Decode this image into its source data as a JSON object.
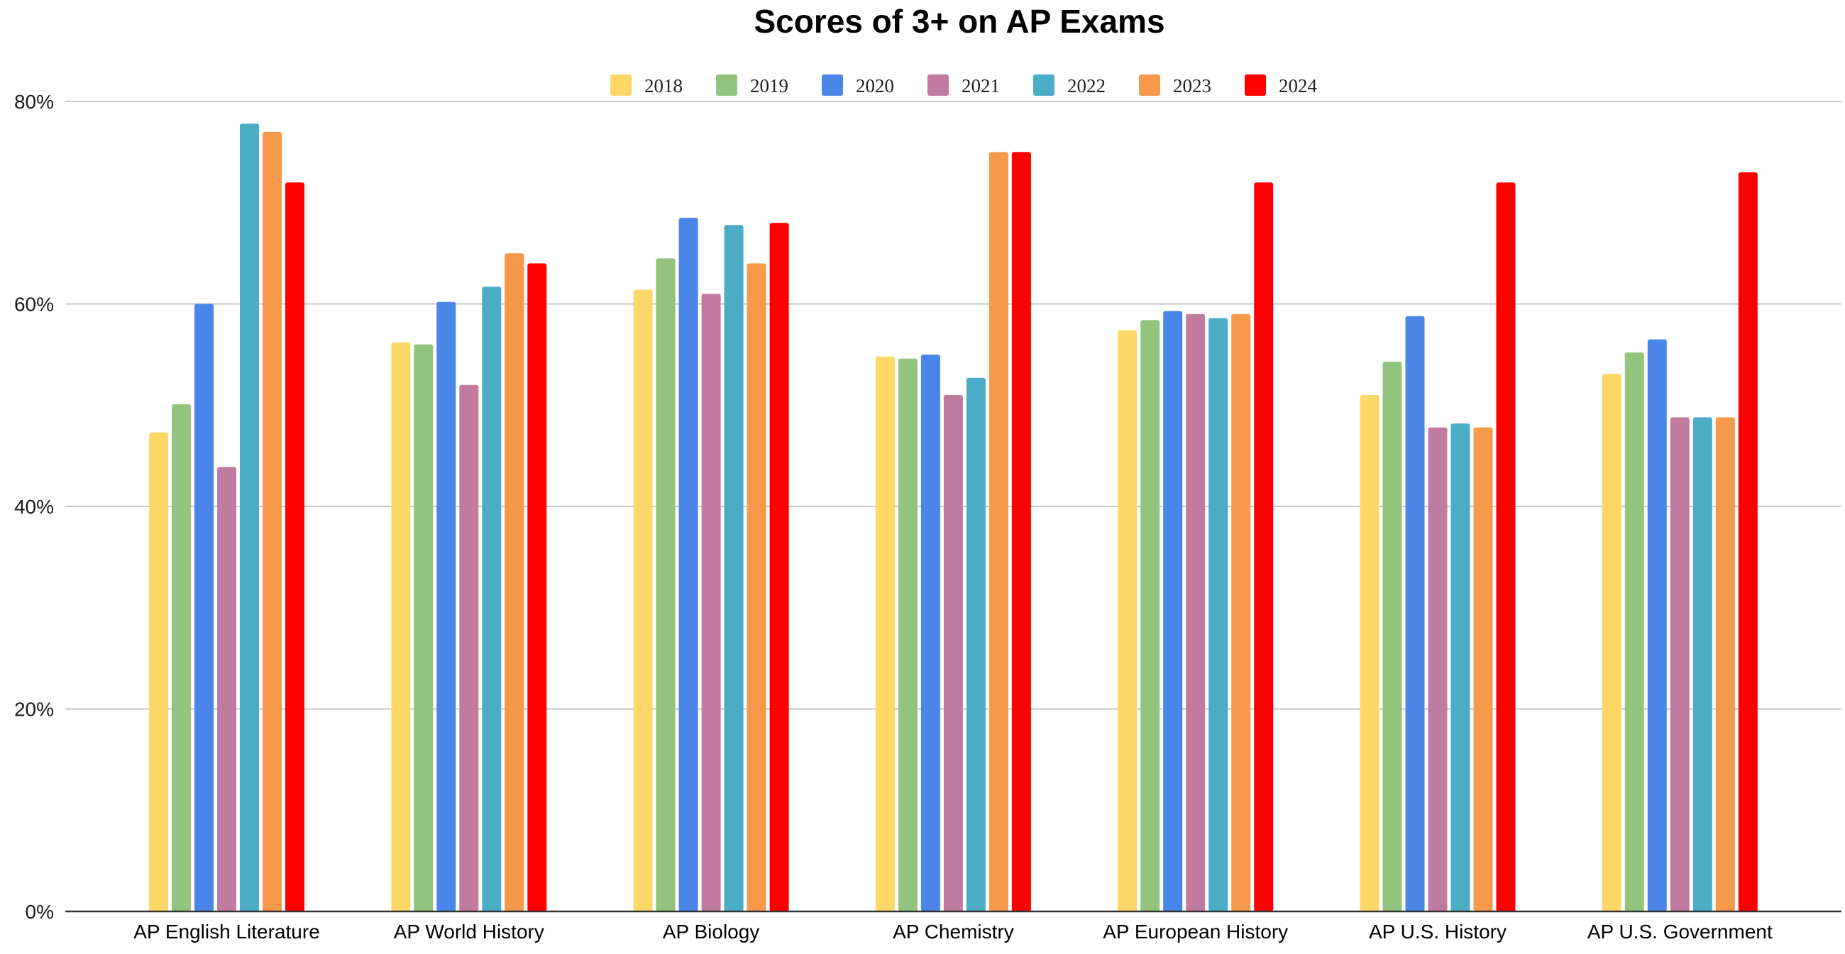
{
  "chart_data": {
    "type": "bar",
    "title": "Scores of 3+ on AP Exams",
    "xlabel": "",
    "ylabel": "",
    "ylim": [
      0,
      80
    ],
    "y_ticks": [
      "0%",
      "20%",
      "40%",
      "60%",
      "80%"
    ],
    "y_tick_values": [
      0,
      20,
      40,
      60,
      80
    ],
    "grid": true,
    "legend_position": "top",
    "categories": [
      "AP English Literature",
      "AP World History",
      "AP Biology",
      "AP Chemistry",
      "AP European History",
      "AP U.S. History",
      "AP U.S. Government"
    ],
    "series": [
      {
        "name": "2018",
        "color": "#FDD868",
        "values": [
          47.3,
          56.2,
          61.4,
          54.8,
          57.4,
          51.0,
          53.1
        ]
      },
      {
        "name": "2019",
        "color": "#93C47D",
        "values": [
          50.1,
          56.0,
          64.5,
          54.6,
          58.4,
          54.3,
          55.2
        ]
      },
      {
        "name": "2020",
        "color": "#4A86E8",
        "values": [
          60.0,
          60.2,
          68.5,
          55.0,
          59.3,
          58.8,
          56.5
        ]
      },
      {
        "name": "2021",
        "color": "#C27BA0",
        "values": [
          43.9,
          52.0,
          61.0,
          51.0,
          59.0,
          47.8,
          48.8
        ]
      },
      {
        "name": "2022",
        "color": "#4BACC6",
        "values": [
          77.8,
          61.7,
          67.8,
          52.7,
          58.6,
          48.2,
          48.8
        ]
      },
      {
        "name": "2023",
        "color": "#F6994A",
        "values": [
          77.0,
          65.0,
          64.0,
          75.0,
          59.0,
          47.8,
          48.8
        ]
      },
      {
        "name": "2024",
        "color": "#FF0000",
        "values": [
          72.0,
          64.0,
          68.0,
          75.0,
          72.0,
          72.0,
          73.0
        ]
      }
    ]
  }
}
